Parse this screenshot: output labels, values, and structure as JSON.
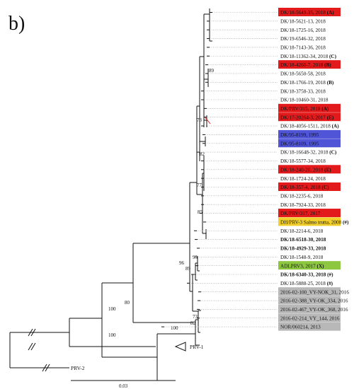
{
  "panel_label": "b)",
  "scale_bar": {
    "label": "0.03"
  },
  "colors": {
    "red": "#e31a1c",
    "blue": "#4f55d6",
    "yellow": "#f2cf2a",
    "green": "#8dc63f",
    "gray": "#b8b8b8"
  },
  "bootstrap": [
    "89",
    "73",
    "82",
    "77",
    "85",
    "96",
    "95",
    "89",
    "80",
    "100",
    "73",
    "82",
    "100",
    "100"
  ],
  "taxa": [
    {
      "label": "DK/18-5649-35, 2018",
      "suffix": "(A)",
      "highlight": "red",
      "bold": false
    },
    {
      "label": "DK/18-5621-13, 2018",
      "suffix": "",
      "highlight": "",
      "bold": false
    },
    {
      "label": "DK/18-1725-16, 2018",
      "suffix": "",
      "highlight": "",
      "bold": false
    },
    {
      "label": "DK/19-6546-32, 2018",
      "suffix": "",
      "highlight": "",
      "bold": false
    },
    {
      "label": "DK/18-7143-36, 2018",
      "suffix": "",
      "highlight": "",
      "bold": false
    },
    {
      "label": "DK/18-11362-34, 2018",
      "suffix": "(C)",
      "highlight": "",
      "bold": false
    },
    {
      "label": "DK/18-4260-7, 2018",
      "suffix": "(B)",
      "highlight": "red",
      "bold": false
    },
    {
      "label": "DK/18-5650-58, 2018",
      "suffix": "",
      "highlight": "",
      "bold": false
    },
    {
      "label": "DK/18-1766-19, 2018",
      "suffix": "(B)",
      "highlight": "",
      "bold": false
    },
    {
      "label": "DK/18-3758-33, 2018",
      "suffix": "",
      "highlight": "",
      "bold": false
    },
    {
      "label": "DK/18-10460-31, 2018",
      "suffix": "",
      "highlight": "",
      "bold": false
    },
    {
      "label": "DK/PRV/315, 2018",
      "suffix": "(A)",
      "highlight": "red",
      "bold": false
    },
    {
      "label": "DK/17-20264-3, 2017",
      "suffix": "(E)",
      "highlight": "red",
      "bold": false
    },
    {
      "label": "DK/18-4056-1511, 2018",
      "suffix": "(A)",
      "highlight": "",
      "bold": false
    },
    {
      "label": "DK/95-8199, 1995",
      "suffix": "",
      "highlight": "blue",
      "bold": false
    },
    {
      "label": "DK/95-8109, 1995",
      "suffix": "",
      "highlight": "blue",
      "bold": false
    },
    {
      "label": "DK/18-16648-32, 2018",
      "suffix": "(C)",
      "highlight": "",
      "bold": false
    },
    {
      "label": "DK/18-5577-34, 2018",
      "suffix": "",
      "highlight": "",
      "bold": false
    },
    {
      "label": "DK/18-240-20, 2018",
      "suffix": "(E)",
      "highlight": "red",
      "bold": false
    },
    {
      "label": "DK/18-1724-24, 2018",
      "suffix": "",
      "highlight": "",
      "bold": false
    },
    {
      "label": "DK/18-357-4, 2018",
      "suffix": "(C)",
      "highlight": "red",
      "bold": false
    },
    {
      "label": "DK/18-2235-6, 2018",
      "suffix": "",
      "highlight": "",
      "bold": false
    },
    {
      "label": "DK/18-7924-33, 2018",
      "suffix": "",
      "highlight": "",
      "bold": false
    },
    {
      "label": "DK/PRV/317, 2017",
      "suffix": "",
      "highlight": "red",
      "bold": false
    },
    {
      "label": "DH/PRV-3 Salmo trutta, 2008",
      "suffix": "(#)",
      "highlight": "yellow",
      "bold": false
    },
    {
      "label": "DK/18-2214-6, 2018",
      "suffix": "",
      "highlight": "",
      "bold": false
    },
    {
      "label": "DK/18-6518-30, 2018",
      "suffix": "",
      "highlight": "",
      "bold": true
    },
    {
      "label": "DK/18-4929-33, 2018",
      "suffix": "",
      "highlight": "",
      "bold": true
    },
    {
      "label": "DK/18-1548-9, 2018",
      "suffix": "",
      "highlight": "",
      "bold": false
    },
    {
      "label": "ADLPRV3, 2017",
      "suffix": "(X)",
      "highlight": "green",
      "bold": false
    },
    {
      "label": "DK/18-6340-33, 2018",
      "suffix": "(#)",
      "highlight": "",
      "bold": true
    },
    {
      "label": "DK/18-5888-25, 2018",
      "suffix": "(#)",
      "highlight": "",
      "bold": false
    },
    {
      "label": "2016-02-100_VY-NOK_31, 2016",
      "suffix": "",
      "highlight": "gray",
      "bold": false
    },
    {
      "label": "2016-02-388_VY-OK_334, 2016",
      "suffix": "",
      "highlight": "gray",
      "bold": false
    },
    {
      "label": "2016-02-467_VY-OK_368, 2016",
      "suffix": "",
      "highlight": "gray",
      "bold": false
    },
    {
      "label": "2016-02-214_VY_144, 2016",
      "suffix": "",
      "highlight": "gray",
      "bold": false
    },
    {
      "label": "NOR/060214, 2013",
      "suffix": "",
      "highlight": "gray",
      "bold": false
    }
  ],
  "outgroups": [
    "PRV-1",
    "PRV-2"
  ]
}
